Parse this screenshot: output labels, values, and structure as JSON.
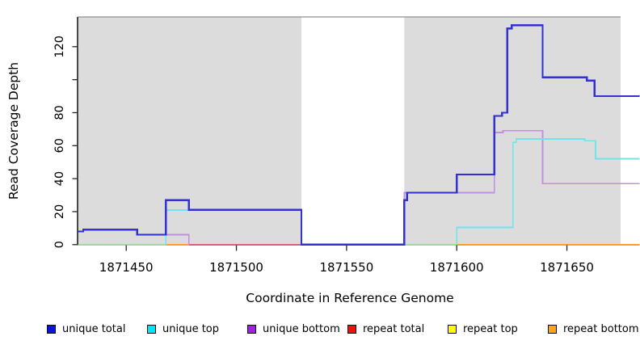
{
  "x_axis": {
    "label": "Coordinate in Reference Genome",
    "ticks": [
      1871450,
      1871500,
      1871550,
      1871600,
      1871650
    ]
  },
  "y_axis": {
    "label": "Read Coverage Depth",
    "ticks": [
      {
        "v": 0,
        "label": "0"
      },
      {
        "v": 20,
        "label": "20"
      },
      {
        "v": 40,
        "label": "40"
      },
      {
        "v": 60,
        "label": "60"
      },
      {
        "v": 80,
        "label": "80"
      },
      {
        "v": 100,
        "label": ""
      },
      {
        "v": 120,
        "label": "120"
      }
    ]
  },
  "legend": {
    "items": [
      {
        "key": "unique-total",
        "label": "unique total",
        "color": "#0e0ee8"
      },
      {
        "key": "unique-top",
        "label": "unique top",
        "color": "#00e6f2"
      },
      {
        "key": "unique-bottom",
        "label": "unique bottom",
        "color": "#9d22e6"
      },
      {
        "key": "repeat-total",
        "label": "repeat total",
        "color": "#f01010"
      },
      {
        "key": "repeat-top",
        "label": "repeat top",
        "color": "#ffff00"
      },
      {
        "key": "repeat-bottom",
        "label": "repeat bottom",
        "color": "#ffa513"
      }
    ]
  },
  "chart_data": {
    "type": "line",
    "step": true,
    "title": "",
    "xlabel": "Coordinate in Reference Genome",
    "ylabel": "Read Coverage Depth",
    "xlim": [
      1871428,
      1871675
    ],
    "ylim": [
      0,
      138
    ],
    "grid": false,
    "legend_position": "bottom",
    "panel_background": "#dcdcdc",
    "panel_border_top": "#a0a0a0",
    "no_data_gap": {
      "from": 1871529.5,
      "to": 1871576.2,
      "fill": "#ffffff"
    },
    "series": [
      {
        "key": "unique-total",
        "name": "unique total",
        "line_color": "#3131d4",
        "width": 2.4,
        "segments": [
          [
            [
              1871428.3,
              8
            ],
            [
              1871430.5,
              9
            ],
            [
              1871455,
              6
            ],
            [
              1871468,
              27
            ],
            [
              1871478.5,
              21
            ],
            [
              1871529.5,
              0
            ],
            [
              1871576.2,
              27
            ],
            [
              1871577.5,
              31.5
            ],
            [
              1871600,
              42.5
            ],
            [
              1871617,
              78
            ],
            [
              1871620.5,
              80
            ],
            [
              1871623,
              131
            ],
            [
              1871625,
              133
            ],
            [
              1871639,
              101.5
            ],
            [
              1871659,
              99.5
            ],
            [
              1871662.5,
              90
            ],
            [
              1871683,
              90
            ]
          ]
        ]
      },
      {
        "key": "unique-top",
        "name": "unique top",
        "line_color": "#6fe5ea",
        "width": 1.8,
        "segments": [
          [
            [
              1871468,
              0
            ],
            [
              1871468,
              21
            ],
            [
              1871529.5,
              21
            ],
            [
              1871529.5,
              0
            ]
          ],
          [
            [
              1871600,
              0
            ],
            [
              1871600,
              10.5
            ],
            [
              1871625.5,
              10.5
            ],
            [
              1871625.5,
              62
            ],
            [
              1871627,
              62
            ],
            [
              1871627,
              64
            ],
            [
              1871658,
              64
            ],
            [
              1871658,
              63
            ],
            [
              1871663,
              63
            ],
            [
              1871663,
              52
            ],
            [
              1871683,
              52
            ]
          ]
        ]
      },
      {
        "key": "unique-bottom",
        "name": "unique bottom",
        "line_color": "#c08fe3",
        "width": 1.6,
        "segments": [
          [
            [
              1871428.3,
              8
            ],
            [
              1871430.5,
              9
            ],
            [
              1871455,
              6
            ],
            [
              1871478.5,
              6
            ],
            [
              1871478.5,
              0
            ]
          ],
          [
            [
              1871576.2,
              0
            ],
            [
              1871576.2,
              31.5
            ],
            [
              1871617,
              31.5
            ],
            [
              1871617,
              68
            ],
            [
              1871621,
              68
            ],
            [
              1871621,
              69
            ],
            [
              1871639,
              69
            ],
            [
              1871639,
              37
            ],
            [
              1871683,
              37
            ]
          ]
        ]
      },
      {
        "key": "repeat-total",
        "name": "repeat total",
        "line_color": "#d4627e",
        "width": 1.6,
        "segments": [
          [
            [
              1871428.3,
              0
            ],
            [
              1871683,
              0
            ]
          ]
        ]
      },
      {
        "key": "repeat-top",
        "name": "repeat top",
        "line_color": "#ffff00",
        "width": 1.6,
        "segments": [
          [
            [
              1871428.3,
              0
            ],
            [
              1871683,
              0
            ]
          ]
        ]
      },
      {
        "key": "repeat-bottom",
        "name": "repeat bottom",
        "line_color": "#ff9d26",
        "width": 1.6,
        "segments": [
          [
            [
              1871428.3,
              0
            ],
            [
              1871683,
              0
            ]
          ]
        ]
      }
    ],
    "zero_line_visible_segments": [
      {
        "series": "unique top + repeat top overlap",
        "color": "#9bdb9b",
        "from": 1871428.3,
        "to": 1871468
      },
      {
        "series": "repeat bottom",
        "color": "#ff9d26",
        "from": 1871468,
        "to": 1871478.5
      },
      {
        "series": "repeat total",
        "color": "#d4627e",
        "from": 1871478.5,
        "to": 1871529.5
      },
      {
        "series": "unique top + repeat top overlap",
        "color": "#9bdb9b",
        "from": 1871576.2,
        "to": 1871600
      },
      {
        "series": "repeat bottom",
        "color": "#ff9d26",
        "from": 1871600,
        "to": 1871683
      }
    ]
  }
}
